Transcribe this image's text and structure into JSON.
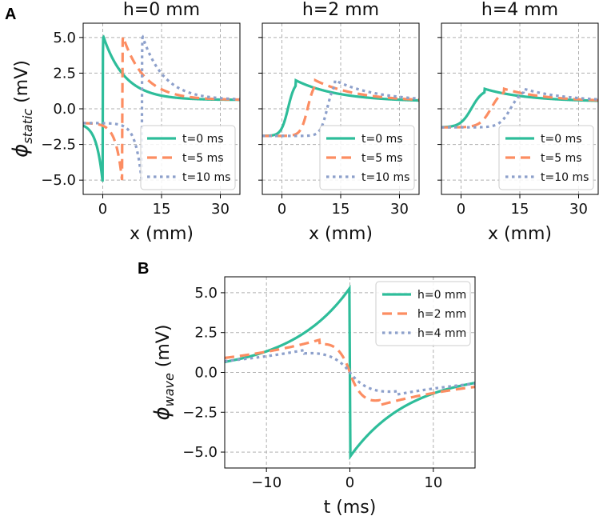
{
  "figure": {
    "panel_a_letter": "A",
    "panel_b_letter": "B"
  },
  "colors": {
    "teal": "#2ebd9a",
    "orange": "#fc8d62",
    "lavender": "#8da0cb",
    "grid": "#b0b0b0",
    "frame": "#000000"
  },
  "chart_data": [
    {
      "id": "A1",
      "type": "line",
      "title": "h=0 mm",
      "xlabel": "x (mm)",
      "ylabel": "ϕstatic (mV)",
      "ylabel_symbol": "ϕ",
      "ylabel_subscript": "static",
      "ylabel_unit": " (mV)",
      "xlim": [
        -5,
        35
      ],
      "ylim": [
        -6,
        6
      ],
      "xticks": [
        0,
        15,
        30
      ],
      "xtick_labels": [
        "0",
        "15",
        "30"
      ],
      "yticks": [
        -5,
        -2.5,
        0,
        2.5,
        5
      ],
      "ytick_labels": [
        "−5.0",
        "−2.5",
        "0.0",
        "2.5",
        "5.0"
      ],
      "grid": true,
      "legend_position": "lower-right",
      "params": {
        "h": 0
      },
      "series": [
        {
          "name": "t=0 ms",
          "shift": 0,
          "style": "solid",
          "color": "#2ebd9a"
        },
        {
          "name": "t=5 ms",
          "shift": 5,
          "style": "dashed",
          "color": "#fc8d62"
        },
        {
          "name": "t=10 ms",
          "shift": 10,
          "style": "dotted",
          "color": "#8da0cb"
        }
      ]
    },
    {
      "id": "A2",
      "type": "line",
      "title": "h=2 mm",
      "xlabel": "x (mm)",
      "xlim": [
        -5,
        35
      ],
      "ylim": [
        -6,
        6
      ],
      "xticks": [
        0,
        15,
        30
      ],
      "xtick_labels": [
        "0",
        "15",
        "30"
      ],
      "yticks": [
        -5,
        -2.5,
        0,
        2.5,
        5
      ],
      "grid": true,
      "legend_position": "lower-right",
      "params": {
        "h": 2
      },
      "series": [
        {
          "name": "t=0 ms",
          "shift": 0,
          "style": "solid",
          "color": "#2ebd9a"
        },
        {
          "name": "t=5 ms",
          "shift": 5,
          "style": "dashed",
          "color": "#fc8d62"
        },
        {
          "name": "t=10 ms",
          "shift": 10,
          "style": "dotted",
          "color": "#8da0cb"
        }
      ]
    },
    {
      "id": "A3",
      "type": "line",
      "title": "h=4 mm",
      "xlabel": "x (mm)",
      "xlim": [
        -5,
        35
      ],
      "ylim": [
        -6,
        6
      ],
      "xticks": [
        0,
        15,
        30
      ],
      "xtick_labels": [
        "0",
        "15",
        "30"
      ],
      "yticks": [
        -5,
        -2.5,
        0,
        2.5,
        5
      ],
      "grid": true,
      "legend_position": "lower-right",
      "params": {
        "h": 4
      },
      "series": [
        {
          "name": "t=0 ms",
          "shift": 0,
          "style": "solid",
          "color": "#2ebd9a"
        },
        {
          "name": "t=5 ms",
          "shift": 5,
          "style": "dashed",
          "color": "#fc8d62"
        },
        {
          "name": "t=10 ms",
          "shift": 10,
          "style": "dotted",
          "color": "#8da0cb"
        }
      ]
    },
    {
      "id": "B",
      "type": "line",
      "title": "",
      "xlabel": "t (ms)",
      "ylabel": "ϕwave (mV)",
      "ylabel_symbol": "ϕ",
      "ylabel_subscript": "wave",
      "ylabel_unit": " (mV)",
      "xlim": [
        -15,
        15
      ],
      "ylim": [
        -6,
        6
      ],
      "xticks": [
        -10,
        0,
        10
      ],
      "xtick_labels": [
        "−10",
        "0",
        "10"
      ],
      "yticks": [
        -5,
        -2.5,
        0,
        2.5,
        5
      ],
      "ytick_labels": [
        "−5.0",
        "−2.5",
        "0.0",
        "2.5",
        "5.0"
      ],
      "grid": true,
      "legend_position": "top-right",
      "series": [
        {
          "name": "h=0 mm",
          "h": 0,
          "style": "solid",
          "color": "#2ebd9a"
        },
        {
          "name": "h=2 mm",
          "h": 2,
          "style": "dashed",
          "color": "#fc8d62"
        },
        {
          "name": "h=4 mm",
          "h": 4,
          "style": "dotted",
          "color": "#8da0cb"
        }
      ]
    }
  ]
}
